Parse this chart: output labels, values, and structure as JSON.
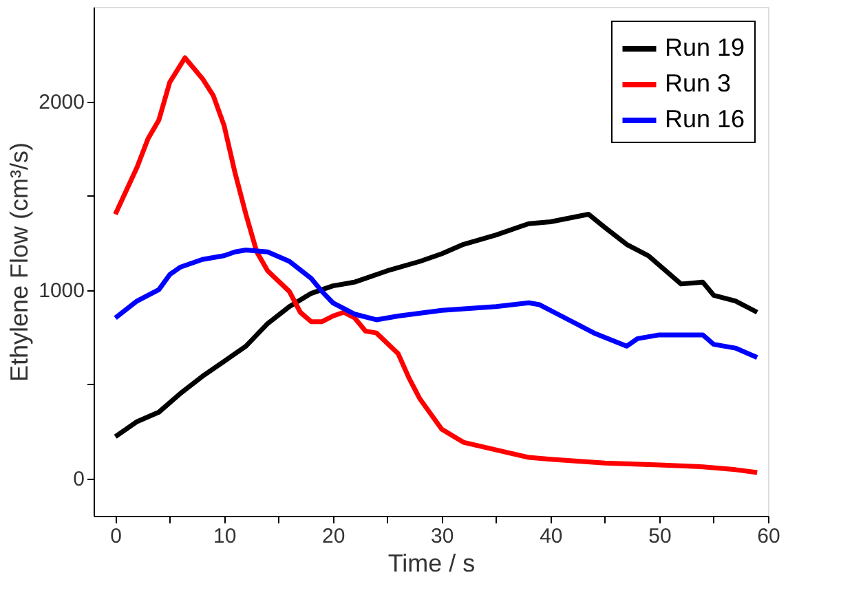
{
  "chart_data": {
    "type": "line",
    "xlabel": "Time / s",
    "ylabel": "Ethylene Flow (cm³/s)",
    "xlim": [
      -2,
      60
    ],
    "ylim": [
      -200,
      2500
    ],
    "xticks": [
      0,
      {
        "value": 5,
        "label": null
      },
      10,
      {
        "value": 15,
        "label": null
      },
      20,
      {
        "value": 25,
        "label": null
      },
      30,
      {
        "value": 35,
        "label": null
      },
      40,
      {
        "value": 45,
        "label": null
      },
      50,
      {
        "value": 55,
        "label": null
      },
      60
    ],
    "yticks": [
      0,
      {
        "value": 500,
        "label": null
      },
      1000,
      {
        "value": 1500,
        "label": null
      },
      2000
    ],
    "grid": false,
    "legend": "top right",
    "marker": "none",
    "line_style": "solid",
    "series": [
      {
        "name": "Run 19",
        "color": "#000000",
        "x": [
          0,
          2,
          4,
          6,
          8,
          10,
          12,
          14,
          16,
          18,
          20,
          22,
          25,
          28,
          30,
          32,
          35,
          38,
          40,
          43.5,
          45,
          47,
          49,
          52,
          54,
          55,
          57,
          59
        ],
        "values": [
          220,
          300,
          350,
          450,
          540,
          620,
          700,
          820,
          910,
          980,
          1020,
          1040,
          1100,
          1150,
          1190,
          1240,
          1290,
          1350,
          1360,
          1400,
          1330,
          1240,
          1180,
          1030,
          1040,
          970,
          940,
          880
        ]
      },
      {
        "name": "Run 3",
        "color": "#ff0000",
        "x": [
          0,
          2,
          3,
          4,
          5,
          6.4,
          8,
          9,
          10,
          11,
          12,
          13,
          14,
          16,
          17,
          18,
          19,
          20,
          21,
          22,
          23,
          24,
          26,
          27,
          28,
          30,
          32,
          35,
          38,
          40,
          45,
          50,
          54,
          57,
          59
        ],
        "values": [
          1400,
          1650,
          1800,
          1900,
          2100,
          2230,
          2120,
          2030,
          1870,
          1620,
          1400,
          1200,
          1100,
          990,
          880,
          830,
          830,
          860,
          880,
          850,
          780,
          770,
          660,
          530,
          420,
          260,
          190,
          150,
          110,
          100,
          80,
          70,
          60,
          45,
          30
        ]
      },
      {
        "name": "Run 16",
        "color": "#0000ff",
        "x": [
          0,
          2,
          4,
          5,
          6,
          8,
          10,
          11,
          12,
          14,
          16,
          18,
          19,
          20,
          22,
          24,
          26,
          30,
          35,
          38,
          39,
          41,
          44,
          47,
          48,
          50,
          54,
          55,
          57,
          59
        ],
        "values": [
          850,
          940,
          1000,
          1080,
          1120,
          1160,
          1180,
          1200,
          1210,
          1200,
          1150,
          1060,
          990,
          930,
          870,
          840,
          860,
          890,
          910,
          930,
          920,
          860,
          770,
          700,
          740,
          760,
          760,
          710,
          690,
          640
        ]
      }
    ]
  }
}
